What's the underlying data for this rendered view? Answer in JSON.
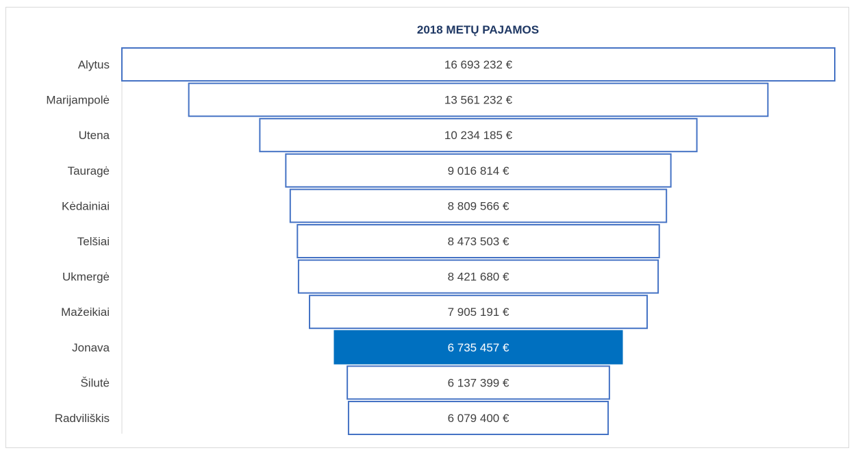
{
  "chart_data": {
    "type": "funnel",
    "title": "2018 METŲ PAJAMOS",
    "categories": [
      "Alytus",
      "Marijampolė",
      "Utena",
      "Tauragė",
      "Kėdainiai",
      "Telšiai",
      "Ukmergė",
      "Mažeikiai",
      "Jonava",
      "Šilutė",
      "Radviliškis"
    ],
    "values": [
      16693232,
      13561232,
      10234185,
      9016814,
      8809566,
      8473503,
      8421680,
      7905191,
      6735457,
      6137399,
      6079400
    ],
    "labels": [
      "16 693 232 €",
      "13 561 232 €",
      "10 234 185 €",
      "9 016 814 €",
      "8 809 566 €",
      "8 473 503 €",
      "8 421 680 €",
      "7 905 191 €",
      "6 735 457 €",
      "6 137 399 €",
      "6 079 400 €"
    ],
    "highlight_index": 8,
    "colors": {
      "outline": "#4472c4",
      "highlight": "#0070c0",
      "title": "#1f3864"
    }
  }
}
